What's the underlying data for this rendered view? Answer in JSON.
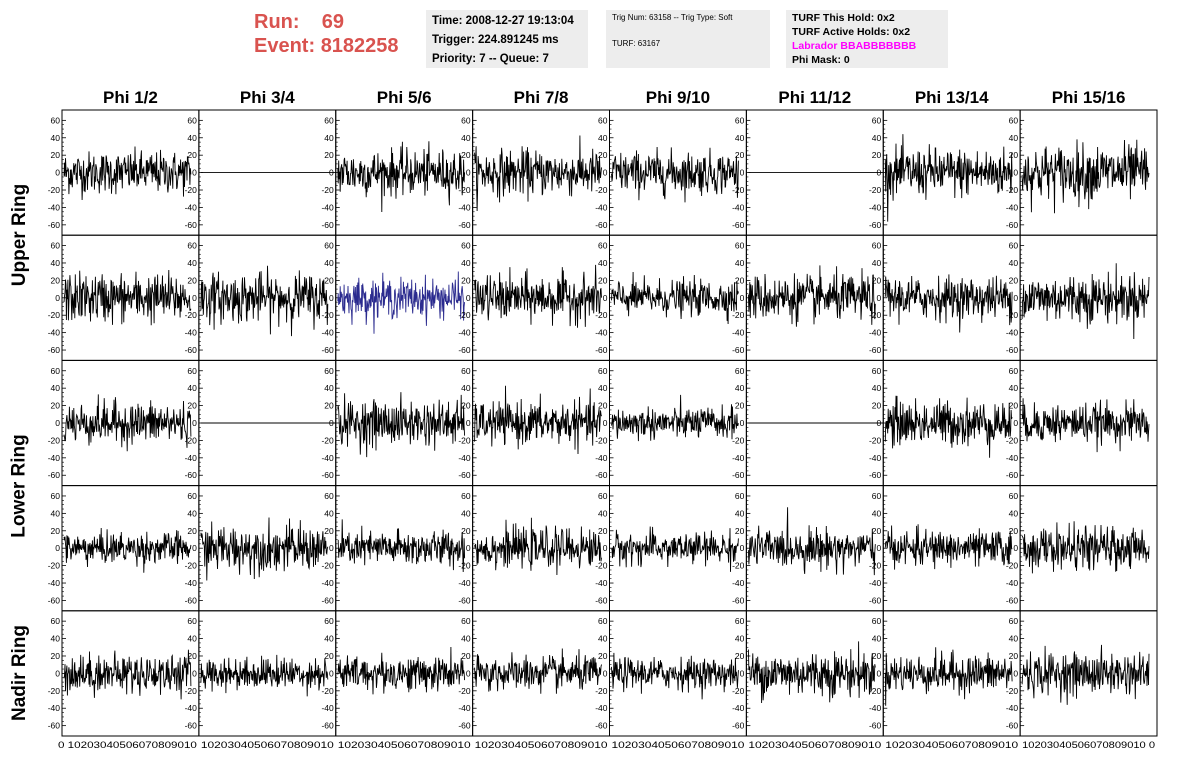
{
  "header": {
    "run_label": "Run:",
    "run_value": "69",
    "event_label": "Event:",
    "event_value": "8182258",
    "time": "Time: 2008-12-27 19:13:04",
    "trigger": "Trigger: 224.891245 ms",
    "priority": "Priority: 7 -- Queue: 7",
    "trig_num": "Trig Num: 63158 -- Trig Type: Soft",
    "turf": "TURF: 63167",
    "turf_hold": "TURF This Hold: 0x2",
    "turf_active": "TURF Active Holds: 0x2",
    "labrador": "Labrador BBABBBBBBB",
    "phi_mask": "Phi Mask: 0"
  },
  "colors": {
    "run_text": "#d9534f",
    "info_bg": "#ededed",
    "labrador": "#ff00ff",
    "trace": "#000000",
    "highlight_trace": "#2b2b8f"
  },
  "chart_data": {
    "type": "line",
    "columns": [
      "Phi 1/2",
      "Phi 3/4",
      "Phi 5/6",
      "Phi 7/8",
      "Phi 9/10",
      "Phi 11/12",
      "Phi 13/14",
      "Phi 15/16"
    ],
    "rows": [
      "Upper Ring",
      "Upper Ring",
      "Lower Ring",
      "Lower Ring",
      "Nadir Ring"
    ],
    "row_labels": [
      {
        "label": "Upper Ring",
        "rows": [
          0,
          1
        ]
      },
      {
        "label": "Lower Ring",
        "rows": [
          2,
          3
        ]
      },
      {
        "label": "Nadir Ring",
        "rows": [
          4
        ]
      }
    ],
    "ylim": [
      -65,
      65
    ],
    "y_ticks": [
      60,
      40,
      20,
      0,
      -20,
      -40,
      -60
    ],
    "xlim": [
      0,
      100
    ],
    "x_ticks": [
      0,
      10,
      20,
      30,
      40,
      50,
      60,
      70,
      80,
      90,
      100
    ],
    "x_tick_row_label": "0 10 20 30 40 50 60 70 80 90 100",
    "x_axis_text_first": "0 10203040506070809010",
    "x_axis_text": "10203040506070809010",
    "x_axis_text_last": "10203040506070809010 0",
    "flat_panels": [
      [
        0,
        1
      ],
      [
        0,
        5
      ],
      [
        2,
        1
      ],
      [
        2,
        5
      ]
    ],
    "highlight_panel": [
      1,
      2
    ],
    "trace_amplitude_rms": [
      [
        12,
        0,
        13,
        13,
        12,
        0,
        14,
        16
      ],
      [
        14,
        14,
        11,
        13,
        10,
        13,
        12,
        14
      ],
      [
        12,
        0,
        13,
        12,
        9,
        0,
        13,
        11
      ],
      [
        9,
        13,
        10,
        11,
        9,
        11,
        10,
        12
      ],
      [
        11,
        9,
        10,
        10,
        9,
        13,
        11,
        12
      ]
    ]
  }
}
